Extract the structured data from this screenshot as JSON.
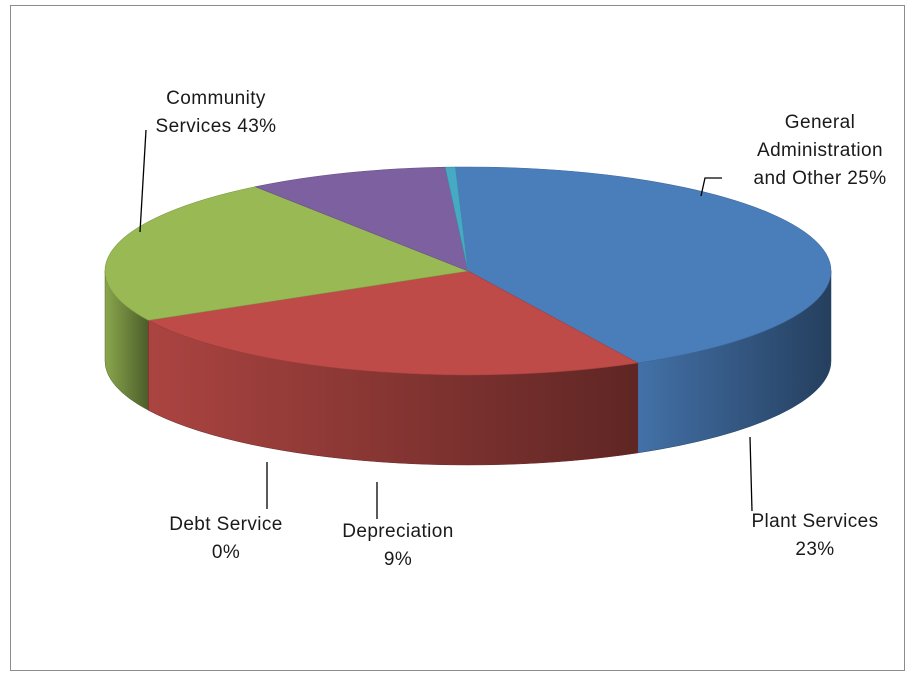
{
  "chart_data": {
    "type": "pie",
    "style": "3d",
    "legend": "none",
    "slices": [
      {
        "name": "Community Services",
        "value": 43,
        "label": [
          "Community",
          "Services 43%"
        ],
        "color": "#4a7ebb"
      },
      {
        "name": "General Administration and Other",
        "value": 25,
        "label": [
          "General",
          "Administration",
          "and Other 25%"
        ],
        "color": "#be4b48"
      },
      {
        "name": "Plant Services",
        "value": 23,
        "label": [
          "Plant Services",
          "23%"
        ],
        "color": "#98b954"
      },
      {
        "name": "Depreciation",
        "value": 9,
        "label": [
          "Depreciation",
          "9%"
        ],
        "color": "#7d60a0"
      },
      {
        "name": "Debt Service",
        "value": 0,
        "label": [
          "Debt Service",
          "0%"
        ],
        "color": "#46aac5"
      }
    ]
  }
}
